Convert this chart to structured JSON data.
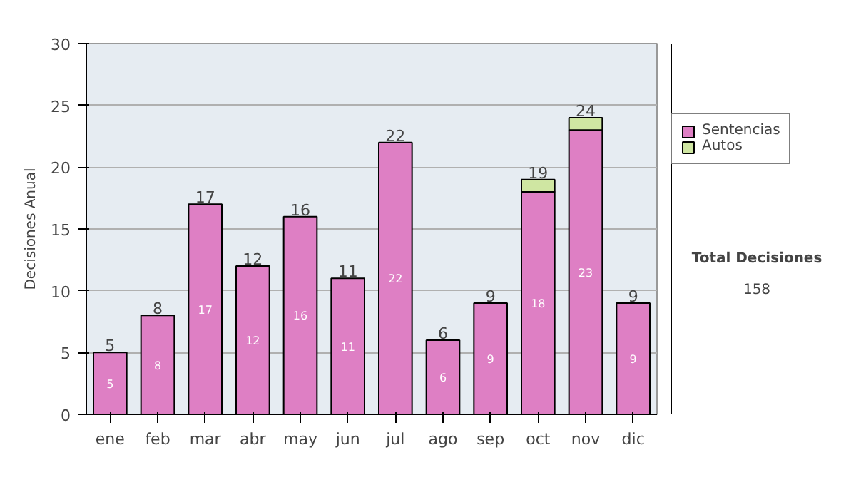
{
  "chart_data": {
    "type": "bar",
    "stacked": true,
    "ylabel": "Decisiones Anual",
    "categories": [
      "ene",
      "feb",
      "mar",
      "abr",
      "may",
      "jun",
      "jul",
      "ago",
      "sep",
      "oct",
      "nov",
      "dic"
    ],
    "series": [
      {
        "name": "Sentencias",
        "color": "#de7fc4",
        "values": [
          5,
          8,
          17,
          12,
          16,
          11,
          22,
          6,
          9,
          18,
          23,
          9
        ],
        "value_labels": [
          "5",
          "8",
          "17",
          "12",
          "16",
          "11",
          "22",
          "6",
          "9",
          "18",
          "23",
          "9"
        ]
      },
      {
        "name": "Autos",
        "color": "#cfe6a2",
        "values": [
          null,
          null,
          null,
          null,
          null,
          null,
          null,
          null,
          null,
          1,
          1,
          null
        ]
      }
    ],
    "totals": [
      "5",
      "8",
      "17",
      "12",
      "16",
      "11",
      "22",
      "6",
      "9",
      "19",
      "24",
      "9"
    ],
    "ylim": [
      0,
      30
    ],
    "yticks": [
      0,
      5,
      10,
      15,
      20,
      25,
      30
    ],
    "grid": "y",
    "legend": "right",
    "annotations": [
      "Total Decisiones",
      "158"
    ]
  }
}
